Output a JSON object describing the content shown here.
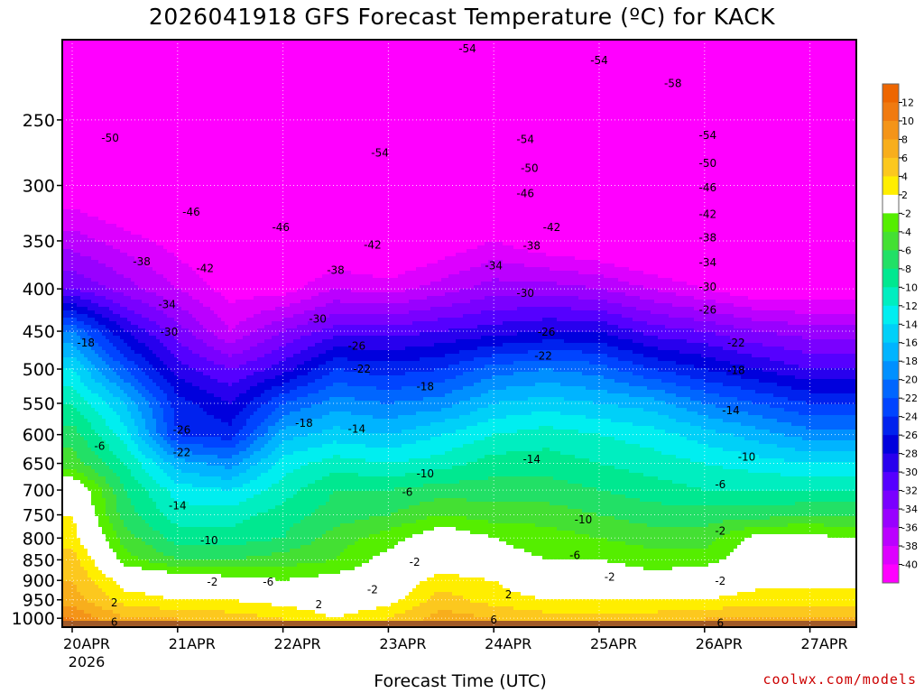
{
  "chart_data": {
    "type": "heatmap",
    "title": "2026041918 GFS Forecast Temperature (ºC) for KACK",
    "xlabel": "Forecast Time (UTC)",
    "ylabel": "",
    "x_ticks": [
      "20APR",
      "21APR",
      "22APR",
      "23APR",
      "24APR",
      "25APR",
      "26APR",
      "27APR"
    ],
    "x_year_label": "2026",
    "y_ticks": [
      250,
      300,
      350,
      400,
      450,
      500,
      550,
      600,
      650,
      700,
      750,
      800,
      850,
      900,
      950,
      1000
    ],
    "y_scale": "log",
    "y_inverted": true,
    "ylim_hPa": [
      200,
      1025
    ],
    "grid": true,
    "colorbar": {
      "labels": [
        12,
        10,
        8,
        6,
        4,
        2,
        -2,
        -4,
        -6,
        -8,
        -10,
        -12,
        -14,
        -16,
        -18,
        -20,
        -22,
        -24,
        -26,
        -28,
        -30,
        -32,
        -34,
        -36,
        -38,
        -40
      ],
      "bins": [
        {
          "lo": 12,
          "hi": 14,
          "color": "#ee6600"
        },
        {
          "lo": 10,
          "hi": 12,
          "color": "#f07a10"
        },
        {
          "lo": 8,
          "hi": 10,
          "color": "#f49418"
        },
        {
          "lo": 6,
          "hi": 8,
          "color": "#f8ae1c"
        },
        {
          "lo": 4,
          "hi": 6,
          "color": "#fcc81e"
        },
        {
          "lo": 2,
          "hi": 4,
          "color": "#ffee00"
        },
        {
          "lo": -2,
          "hi": 2,
          "color": "#ffffff"
        },
        {
          "lo": -4,
          "hi": -2,
          "color": "#55ee00"
        },
        {
          "lo": -6,
          "hi": -4,
          "color": "#44e033"
        },
        {
          "lo": -8,
          "hi": -6,
          "color": "#22e066"
        },
        {
          "lo": -10,
          "hi": -8,
          "color": "#00e890"
        },
        {
          "lo": -12,
          "hi": -10,
          "color": "#00eec0"
        },
        {
          "lo": -14,
          "hi": -12,
          "color": "#00eef0"
        },
        {
          "lo": -16,
          "hi": -14,
          "color": "#00d0f8"
        },
        {
          "lo": -18,
          "hi": -16,
          "color": "#00b4ff"
        },
        {
          "lo": -20,
          "hi": -18,
          "color": "#0090ff"
        },
        {
          "lo": -22,
          "hi": -20,
          "color": "#0066ff"
        },
        {
          "lo": -24,
          "hi": -22,
          "color": "#0044ff"
        },
        {
          "lo": -26,
          "hi": -24,
          "color": "#0022ee"
        },
        {
          "lo": -28,
          "hi": -26,
          "color": "#0000dd"
        },
        {
          "lo": -30,
          "hi": -28,
          "color": "#2800ee"
        },
        {
          "lo": -32,
          "hi": -30,
          "color": "#5500ff"
        },
        {
          "lo": -34,
          "hi": -32,
          "color": "#7a00ff"
        },
        {
          "lo": -36,
          "hi": -34,
          "color": "#9900ff"
        },
        {
          "lo": -38,
          "hi": -36,
          "color": "#bb00ff"
        },
        {
          "lo": -40,
          "hi": -38,
          "color": "#dd00ff"
        },
        {
          "lo": -99,
          "hi": -40,
          "color": "#ff00ff"
        }
      ],
      "ground_color": "#a05a28"
    },
    "times_day": [
      0,
      0.5,
      1,
      1.5,
      2,
      2.5,
      3,
      3.5,
      4,
      4.5,
      5,
      5.5,
      6,
      6.5,
      7,
      7.25
    ],
    "levels_hPa": [
      250,
      300,
      350,
      400,
      450,
      500,
      550,
      600,
      650,
      700,
      750,
      800,
      850,
      900,
      950,
      1000
    ],
    "temperature_C": [
      [
        -50,
        -50,
        -48,
        -50,
        -52,
        -53,
        -54,
        -53,
        -52,
        -54,
        -53,
        -55,
        -56,
        -58,
        -57,
        -57
      ],
      [
        -42,
        -44,
        -46,
        -47,
        -48,
        -49,
        -50,
        -49,
        -48,
        -50,
        -50,
        -52,
        -51,
        -52,
        -53,
        -53
      ],
      [
        -37,
        -39,
        -41,
        -44,
        -44,
        -43,
        -44,
        -42,
        -40,
        -42,
        -43,
        -45,
        -46,
        -48,
        -47,
        -47
      ],
      [
        -32,
        -35,
        -38,
        -41,
        -41,
        -38,
        -39,
        -37,
        -35,
        -35,
        -36,
        -38,
        -40,
        -42,
        -42,
        -42
      ],
      [
        -20,
        -28,
        -33,
        -38,
        -34,
        -31,
        -31,
        -30,
        -29,
        -28,
        -28,
        -31,
        -32,
        -34,
        -35,
        -35
      ],
      [
        -14,
        -22,
        -29,
        -32,
        -29,
        -24,
        -25,
        -24,
        -21,
        -20,
        -21,
        -24,
        -26,
        -28,
        -30,
        -30
      ],
      [
        -10,
        -16,
        -25,
        -28,
        -22,
        -19,
        -20,
        -19,
        -16,
        -15,
        -16,
        -17,
        -20,
        -22,
        -24,
        -24
      ],
      [
        -7,
        -13,
        -24,
        -25,
        -17,
        -15,
        -16,
        -14,
        -12,
        -11,
        -12,
        -13,
        -15,
        -17,
        -19,
        -19
      ],
      [
        -5,
        -10,
        -17,
        -19,
        -13,
        -11,
        -12,
        -11,
        -9,
        -9,
        -10,
        -11,
        -12,
        -13,
        -14,
        -14
      ],
      [
        1,
        -8,
        -13,
        -14,
        -11,
        -8,
        -8,
        -7,
        -7,
        -7,
        -8,
        -9,
        -10,
        -10,
        -10,
        -10
      ],
      [
        2,
        -7,
        -11,
        -11,
        -9,
        -7,
        -6,
        -4,
        -5,
        -5,
        -6,
        -7,
        -7,
        -7,
        -6,
        -6
      ],
      [
        3,
        -5,
        -9,
        -9,
        -8,
        -5,
        -3,
        0,
        -2,
        -3,
        -4,
        -5,
        -5,
        -1,
        -1,
        -2
      ],
      [
        5,
        -3,
        -6,
        -6,
        -5,
        -4,
        -1,
        0,
        -1,
        -2,
        -2,
        -3,
        -3,
        0,
        0,
        -2
      ],
      [
        6,
        1,
        0,
        -1,
        -2,
        -1,
        0,
        3,
        2,
        0,
        0,
        -1,
        0,
        1,
        1,
        1
      ],
      [
        7,
        3,
        2,
        2,
        1,
        0,
        1,
        5,
        3,
        2,
        2,
        2,
        2,
        3,
        3,
        3
      ],
      [
        10,
        6,
        6,
        5,
        4,
        2,
        4,
        7,
        6,
        5,
        5,
        5,
        6,
        6,
        6,
        6
      ]
    ],
    "contour_labels": [
      {
        "text": "-54",
        "t": 3.75,
        "p": 205
      },
      {
        "text": "-54",
        "t": 5.0,
        "p": 212
      },
      {
        "text": "-58",
        "t": 5.7,
        "p": 226
      },
      {
        "text": "-50",
        "t": 0.36,
        "p": 263
      },
      {
        "text": "-54",
        "t": 2.92,
        "p": 274
      },
      {
        "text": "-54",
        "t": 4.3,
        "p": 264
      },
      {
        "text": "-54",
        "t": 6.03,
        "p": 261
      },
      {
        "text": "-50",
        "t": 4.34,
        "p": 286
      },
      {
        "text": "-50",
        "t": 6.03,
        "p": 282
      },
      {
        "text": "-46",
        "t": 1.13,
        "p": 323
      },
      {
        "text": "-46",
        "t": 1.98,
        "p": 337
      },
      {
        "text": "-46",
        "t": 4.3,
        "p": 307
      },
      {
        "text": "-46",
        "t": 6.03,
        "p": 302
      },
      {
        "text": "-42",
        "t": 6.03,
        "p": 325
      },
      {
        "text": "-42",
        "t": 4.55,
        "p": 337
      },
      {
        "text": "-42",
        "t": 2.85,
        "p": 354
      },
      {
        "text": "-38",
        "t": 6.03,
        "p": 347
      },
      {
        "text": "-42",
        "t": 1.26,
        "p": 378
      },
      {
        "text": "-38",
        "t": 0.66,
        "p": 371
      },
      {
        "text": "-38",
        "t": 4.36,
        "p": 355
      },
      {
        "text": "-38",
        "t": 2.5,
        "p": 380
      },
      {
        "text": "-34",
        "t": 4.0,
        "p": 375
      },
      {
        "text": "-34",
        "t": 6.03,
        "p": 372
      },
      {
        "text": "-30",
        "t": 6.03,
        "p": 398
      },
      {
        "text": "-30",
        "t": 4.3,
        "p": 405
      },
      {
        "text": "-34",
        "t": 0.9,
        "p": 418
      },
      {
        "text": "-30",
        "t": 2.33,
        "p": 435
      },
      {
        "text": "-26",
        "t": 6.03,
        "p": 424
      },
      {
        "text": "-30",
        "t": 0.92,
        "p": 451
      },
      {
        "text": "-26",
        "t": 4.5,
        "p": 451
      },
      {
        "text": "-18",
        "t": 0.13,
        "p": 465
      },
      {
        "text": "-26",
        "t": 2.7,
        "p": 469
      },
      {
        "text": "-22",
        "t": 6.3,
        "p": 465
      },
      {
        "text": "-22",
        "t": 4.47,
        "p": 482
      },
      {
        "text": "-22",
        "t": 2.75,
        "p": 500
      },
      {
        "text": "-18",
        "t": 6.3,
        "p": 502
      },
      {
        "text": "-18",
        "t": 3.35,
        "p": 525
      },
      {
        "text": "-14",
        "t": 6.25,
        "p": 561
      },
      {
        "text": "-18",
        "t": 2.2,
        "p": 581
      },
      {
        "text": "-26",
        "t": 1.04,
        "p": 592
      },
      {
        "text": "-14",
        "t": 2.7,
        "p": 591
      },
      {
        "text": "-6",
        "t": 0.26,
        "p": 620
      },
      {
        "text": "-22",
        "t": 1.04,
        "p": 631
      },
      {
        "text": "-10",
        "t": 6.4,
        "p": 639
      },
      {
        "text": "-14",
        "t": 4.36,
        "p": 643
      },
      {
        "text": "-10",
        "t": 3.35,
        "p": 669
      },
      {
        "text": "-6",
        "t": 6.15,
        "p": 689
      },
      {
        "text": "-6",
        "t": 3.18,
        "p": 704
      },
      {
        "text": "-14",
        "t": 1.0,
        "p": 731
      },
      {
        "text": "-10",
        "t": 4.85,
        "p": 760
      },
      {
        "text": "-2",
        "t": 6.15,
        "p": 785
      },
      {
        "text": "-10",
        "t": 1.3,
        "p": 806
      },
      {
        "text": "-6",
        "t": 4.77,
        "p": 840
      },
      {
        "text": "-2",
        "t": 3.25,
        "p": 855
      },
      {
        "text": "-2",
        "t": 5.1,
        "p": 892
      },
      {
        "text": "-2",
        "t": 6.15,
        "p": 902
      },
      {
        "text": "-6",
        "t": 1.86,
        "p": 904
      },
      {
        "text": "-2",
        "t": 1.33,
        "p": 904
      },
      {
        "text": "-2",
        "t": 2.85,
        "p": 924
      },
      {
        "text": "2",
        "t": 4.14,
        "p": 937
      },
      {
        "text": "2",
        "t": 0.4,
        "p": 958
      },
      {
        "text": "2",
        "t": 2.34,
        "p": 963
      },
      {
        "text": "6",
        "t": 4.0,
        "p": 1004
      },
      {
        "text": "6",
        "t": 0.4,
        "p": 1011
      },
      {
        "text": "6",
        "t": 6.15,
        "p": 1014
      }
    ]
  },
  "footer": {
    "credit": "coolwx.com/models"
  }
}
